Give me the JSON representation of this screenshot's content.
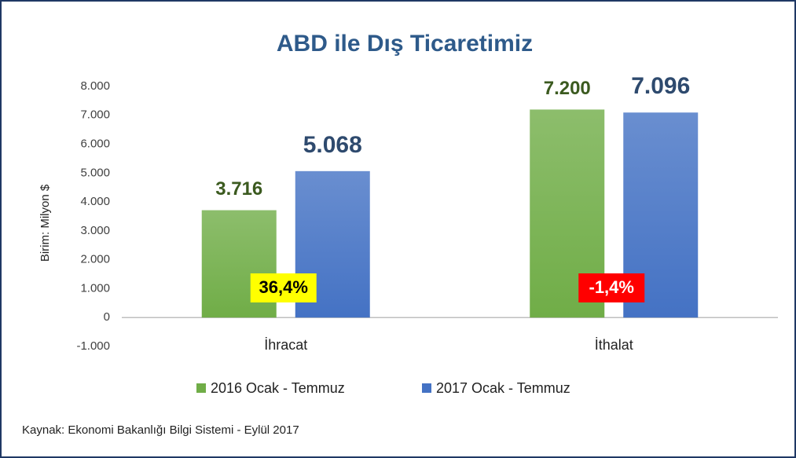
{
  "chart_data": {
    "type": "bar",
    "title": "ABD ile Dış Ticaretimiz",
    "y_label": "Birim: Milyon $",
    "source": "Kaynak: Ekonomi Bakanlığı Bilgi Sistemi - Eylül 2017",
    "categories": [
      "İhracat",
      "İthalat"
    ],
    "series": [
      {
        "name": "2016 Ocak - Temmuz",
        "color": "#70ad47",
        "label_color": "#3b5a1f",
        "values": [
          3716,
          7200
        ],
        "value_labels": [
          "3.716",
          "7.200"
        ]
      },
      {
        "name": "2017 Ocak - Temmuz",
        "color": "#4472c4",
        "label_color": "#2e4a6e",
        "values": [
          5068,
          7096
        ],
        "value_labels": [
          "5.068",
          "7.096"
        ]
      }
    ],
    "annotations": [
      {
        "text": "36,4%",
        "background": "#ffff00",
        "color": "#000000"
      },
      {
        "text": "-1,4%",
        "background": "#ff0000",
        "color": "#ffffff"
      }
    ],
    "ylim": [
      -1000,
      8000
    ],
    "yticks": [
      {
        "value": -1000,
        "label": "-1.000"
      },
      0,
      {
        "value": 1000,
        "label": "1.000"
      },
      {
        "value": 2000,
        "label": "2.000"
      },
      {
        "value": 3000,
        "label": "3.000"
      },
      {
        "value": 4000,
        "label": "4.000"
      },
      {
        "value": 5000,
        "label": "5.000"
      },
      {
        "value": 6000,
        "label": "6.000"
      },
      {
        "value": 7000,
        "label": "7.000"
      },
      {
        "value": 8000,
        "label": "8.000"
      }
    ],
    "grid": false,
    "legend": "bottom"
  }
}
